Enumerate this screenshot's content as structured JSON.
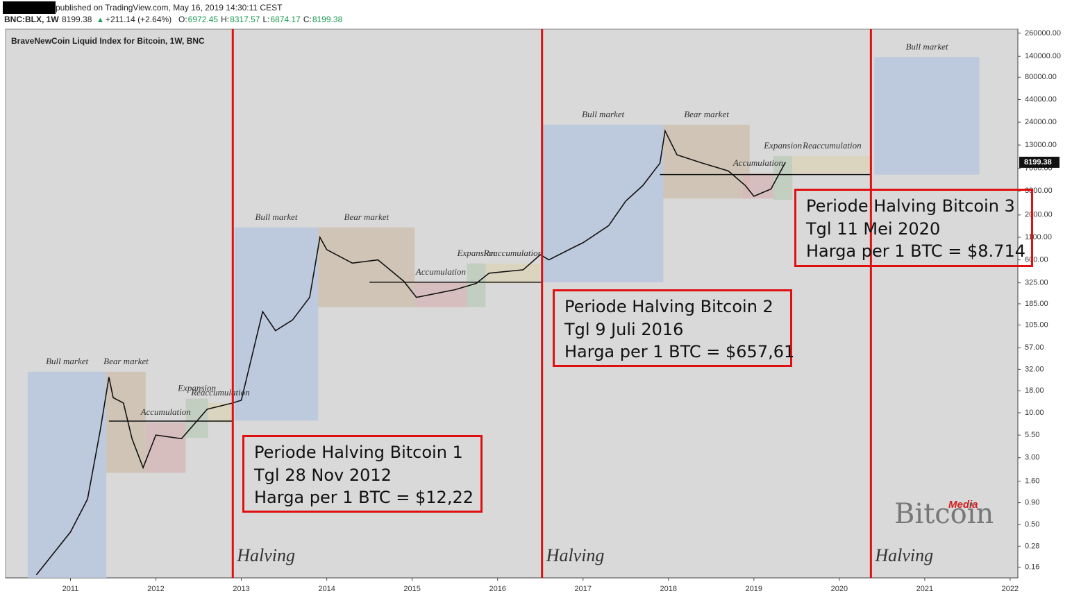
{
  "header": {
    "published": "published on TradingView.com, May 16, 2019 14:30:11 CEST",
    "symbol": "BNC:BLX, 1W",
    "last": "8199.38",
    "change": "+211.14 (+2.64%)",
    "ohlc": [
      {
        "label": "O:",
        "value": "6972.45"
      },
      {
        "label": "H:",
        "value": "8317.57"
      },
      {
        "label": "L:",
        "value": "6874.17"
      },
      {
        "label": "C:",
        "value": "8199.38"
      }
    ]
  },
  "chart_data": {
    "type": "line",
    "title": "BraveNewCoin Liquid Index for Bitcoin, 1W, BNC",
    "x": [
      2010.6,
      2011.0,
      2011.2,
      2011.35,
      2011.45,
      2011.5,
      2011.62,
      2011.72,
      2011.85,
      2012.0,
      2012.3,
      2012.6,
      2012.9,
      2013.0,
      2013.25,
      2013.4,
      2013.6,
      2013.8,
      2013.92,
      2014.0,
      2014.3,
      2014.6,
      2014.9,
      2015.05,
      2015.5,
      2015.75,
      2015.9,
      2016.3,
      2016.5,
      2016.6,
      2016.9,
      2017.0,
      2017.3,
      2017.5,
      2017.7,
      2017.9,
      2017.96,
      2018.1,
      2018.4,
      2018.7,
      2018.9,
      2019.0,
      2019.2,
      2019.37
    ],
    "series": [
      {
        "name": "BLX",
        "color": "#111111",
        "values": [
          0.13,
          0.41,
          0.99,
          6.4,
          26,
          15,
          13,
          5,
          2.3,
          5.5,
          5,
          11,
          13,
          14,
          150,
          90,
          120,
          220,
          1100,
          790,
          550,
          600,
          340,
          220,
          270,
          320,
          420,
          460,
          690,
          600,
          850,
          950,
          1500,
          2900,
          4400,
          8000,
          19000,
          10000,
          8000,
          6500,
          4400,
          3300,
          4000,
          8199.38
        ]
      }
    ],
    "last_price": {
      "value": 8199.38,
      "label": "8199.38"
    },
    "xlim": [
      2010.24,
      2022.09
    ],
    "xticks": [
      2011,
      2012,
      2013,
      2014,
      2015,
      2016,
      2017,
      2018,
      2019,
      2020,
      2021,
      2022
    ],
    "ylim": [
      0.12,
      290000
    ],
    "log_scale": true,
    "grid": false,
    "yticks": [
      {
        "value": 260000,
        "label": "260000.00"
      },
      {
        "value": 140000,
        "label": "140000.00"
      },
      {
        "value": 80000,
        "label": "80000.00"
      },
      {
        "value": 44000,
        "label": "44000.00"
      },
      {
        "value": 24000,
        "label": "24000.00"
      },
      {
        "value": 13000,
        "label": "13000.00"
      },
      {
        "value": 7000,
        "label": "7000.00"
      },
      {
        "value": 3800,
        "label": "3800.00"
      },
      {
        "value": 2000,
        "label": "2000.00"
      },
      {
        "value": 1100,
        "label": "1100.00"
      },
      {
        "value": 600,
        "label": "600.00"
      },
      {
        "value": 325,
        "label": "325.00"
      },
      {
        "value": 185,
        "label": "185.00"
      },
      {
        "value": 105,
        "label": "105.00"
      },
      {
        "value": 57,
        "label": "57.00"
      },
      {
        "value": 32,
        "label": "32.00"
      },
      {
        "value": 18,
        "label": "18.00"
      },
      {
        "value": 10,
        "label": "10.00"
      },
      {
        "value": 5.5,
        "label": "5.50"
      },
      {
        "value": 3,
        "label": "3.00"
      },
      {
        "value": 1.6,
        "label": "1.60"
      },
      {
        "value": 0.9,
        "label": "0.90"
      },
      {
        "value": 0.5,
        "label": "0.50"
      },
      {
        "value": 0.28,
        "label": "0.28"
      },
      {
        "value": 0.16,
        "label": "0.16"
      }
    ],
    "zones": [
      {
        "label": "Bull market",
        "x0": 2010.5,
        "x1": 2011.42,
        "y0": 0.12,
        "y1": 30,
        "color": "#b7c5dc"
      },
      {
        "label": "Bear market",
        "x0": 2011.42,
        "x1": 2011.88,
        "y0": 2,
        "y1": 30,
        "color": "#cdbfae"
      },
      {
        "label": "Accumulation",
        "x0": 2011.88,
        "x1": 2012.35,
        "y0": 2,
        "y1": 7.7,
        "color": "#d6b9b9"
      },
      {
        "label": "Expansion",
        "x0": 2012.35,
        "x1": 2012.61,
        "y0": 5.1,
        "y1": 14.6,
        "color": "#bccbbb"
      },
      {
        "label": "Reaccumulation",
        "x0": 2012.61,
        "x1": 2012.9,
        "y0": 7.7,
        "y1": 13,
        "color": "#dbd2b8"
      },
      {
        "label": "Bull market",
        "x0": 2012.92,
        "x1": 2013.9,
        "y0": 8.1,
        "y1": 1430,
        "color": "#b7c5dc"
      },
      {
        "label": "Bear market",
        "x0": 2013.9,
        "x1": 2015.03,
        "y0": 169,
        "y1": 1430,
        "color": "#cdbfae"
      },
      {
        "label": "Accumulation",
        "x0": 2015.03,
        "x1": 2015.64,
        "y0": 169,
        "y1": 330,
        "color": "#d6b9b9"
      },
      {
        "label": "Expansion",
        "x0": 2015.64,
        "x1": 2015.86,
        "y0": 169,
        "y1": 545,
        "color": "#bccbbb"
      },
      {
        "label": "Reaccumulation",
        "x0": 2015.86,
        "x1": 2016.5,
        "y0": 320,
        "y1": 545,
        "color": "#dbd2b8"
      },
      {
        "label": "Bull market",
        "x0": 2016.53,
        "x1": 2017.94,
        "y0": 330,
        "y1": 22400,
        "color": "#b7c5dc"
      },
      {
        "label": "Bear market",
        "x0": 2017.94,
        "x1": 2018.95,
        "y0": 3100,
        "y1": 22400,
        "color": "#cdbfae"
      },
      {
        "label": "Accumulation",
        "x0": 2018.87,
        "x1": 2019.23,
        "y0": 3100,
        "y1": 6100,
        "color": "#d6b9b9"
      },
      {
        "label": "Expansion",
        "x0": 2019.23,
        "x1": 2019.45,
        "y0": 3000,
        "y1": 9700,
        "color": "#bccbbb"
      },
      {
        "label": "Reaccumulation",
        "x0": 2019.45,
        "x1": 2020.38,
        "y0": 6100,
        "y1": 9700,
        "color": "#dbd2b8"
      },
      {
        "label": "Bull market",
        "x0": 2020.41,
        "x1": 2021.64,
        "y0": 5900,
        "y1": 137000,
        "color": "#b7c5dc"
      }
    ],
    "levels": [
      {
        "x0": 2011.45,
        "x1": 2012.9,
        "value": 8
      },
      {
        "x0": 2014.5,
        "x1": 2016.52,
        "value": 330
      },
      {
        "x0": 2017.9,
        "x1": 2020.37,
        "value": 5900
      }
    ],
    "halvings": [
      {
        "x": 2012.9,
        "label": "Halving"
      },
      {
        "x": 2016.52,
        "label": "Halving"
      },
      {
        "x": 2020.37,
        "label": "Halving"
      }
    ]
  },
  "callouts": [
    {
      "title": "Periode Halving Bitcoin 1",
      "date": "Tgl 28 Nov 2012",
      "price": "Harga per 1 BTC = $12,22"
    },
    {
      "title": "Periode Halving Bitcoin 2",
      "date": "Tgl 9 Juli 2016",
      "price": "Harga per 1 BTC = $657,61"
    },
    {
      "title": "Periode Halving Bitcoin 3",
      "date": "Tgl 11 Mei 2020",
      "price": "Harga per 1 BTC = $8.714"
    }
  ],
  "watermark": {
    "top": "Media",
    "main": "Bitcoin"
  }
}
